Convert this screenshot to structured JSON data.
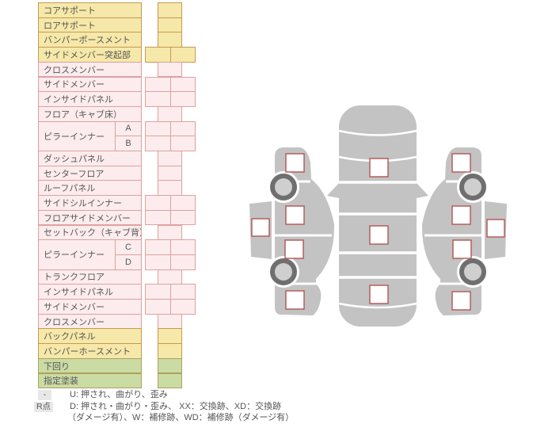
{
  "colors": {
    "yellow_fill": "#f6e8a8",
    "yellow_border": "#c59a55",
    "pink_fill": "#fdeced",
    "pink_border": "#dfa0a0",
    "green_fill": "#cbdba4",
    "green_border": "#b0a05e",
    "checkbox_border": "#b25454",
    "body_gray": "#c3c3c3",
    "wheel_dark": "#6f6f6f",
    "wheel_light": "#cfcfcf",
    "text": "#555555",
    "legend_box_bg": "#e8e8e8"
  },
  "table": {
    "rows": [
      {
        "label": "コアサポート",
        "color": "yellow",
        "cells": 1
      },
      {
        "label": "ロアサポート",
        "color": "yellow",
        "cells": 1
      },
      {
        "label": "バンパーポースメント",
        "color": "yellow",
        "cells": 1
      },
      {
        "label": "サイドメンバー突起部",
        "color": "yellow",
        "cells": 2
      },
      {
        "label": "クロスメンバー",
        "color": "pink",
        "cells": 1
      },
      {
        "label": "サイドメンバー",
        "color": "pink",
        "cells": 2
      },
      {
        "label": "インサイドパネル",
        "color": "pink",
        "cells": 2
      },
      {
        "label": "フロア（キャブ床）",
        "color": "pink",
        "cells": 1
      },
      {
        "label": "ピラーインナー",
        "sub": "A",
        "color": "pink",
        "cells": 2,
        "span": 2
      },
      {
        "label": "ピラーインナー",
        "sub": "B",
        "color": "pink",
        "cells": 2,
        "skipLabel": true
      },
      {
        "label": "ダッシュパネル",
        "color": "pink",
        "cells": 1
      },
      {
        "label": "センターフロア",
        "color": "pink",
        "cells": 1
      },
      {
        "label": "ルーフパネル",
        "color": "pink",
        "cells": 1
      },
      {
        "label": "サイドシルインナー",
        "color": "pink",
        "cells": 2
      },
      {
        "label": "フロアサイドメンバー",
        "color": "pink",
        "cells": 2
      },
      {
        "label": "セットバック（キャブ背）",
        "color": "pink",
        "cells": 1
      },
      {
        "label": "ピラーインナー",
        "sub": "C",
        "color": "pink",
        "cells": 2,
        "span": 2
      },
      {
        "label": "ピラーインナー",
        "sub": "D",
        "color": "pink",
        "cells": 2,
        "skipLabel": true
      },
      {
        "label": "トランクフロア",
        "color": "pink",
        "cells": 1
      },
      {
        "label": "インサイドパネル",
        "color": "pink",
        "cells": 2
      },
      {
        "label": "サイドメンバー",
        "color": "pink",
        "cells": 2
      },
      {
        "label": "クロスメンバー",
        "color": "pink",
        "cells": 1
      },
      {
        "label": "バックパネル",
        "color": "yellow",
        "cells": 1
      },
      {
        "label": "バンパーホースメント",
        "color": "yellow",
        "cells": 1
      },
      {
        "label": "下回り",
        "color": "green",
        "cells": 1
      },
      {
        "label": "指定塗装",
        "color": "green",
        "cells": 1
      }
    ]
  },
  "legend": {
    "rows": [
      {
        "key": "-",
        "text": "U: 押され、曲がり、歪み"
      },
      {
        "key": "R点",
        "text": "D: 押され・曲がり・歪み、 XX：交換跡、XD：交換跡"
      },
      {
        "key": "",
        "text": "（ダメージ有）、W：補修跡、WD：補修跡（ダメージ有）"
      }
    ]
  },
  "diagram": {
    "views": [
      "left-side-view",
      "top-view",
      "right-side-view"
    ],
    "checkbox_style": "white-square-red-border",
    "checkboxes": [
      "top-view-front-checkbox",
      "top-view-center-checkbox",
      "top-view-rear-checkbox",
      "left-front-fender-checkbox",
      "left-front-door-checkbox",
      "left-rear-door-checkbox",
      "left-rear-fender-checkbox",
      "left-rocker-checkbox",
      "right-front-fender-checkbox",
      "right-front-door-checkbox",
      "right-rear-door-checkbox",
      "right-rear-fender-checkbox",
      "right-rocker-checkbox"
    ]
  }
}
